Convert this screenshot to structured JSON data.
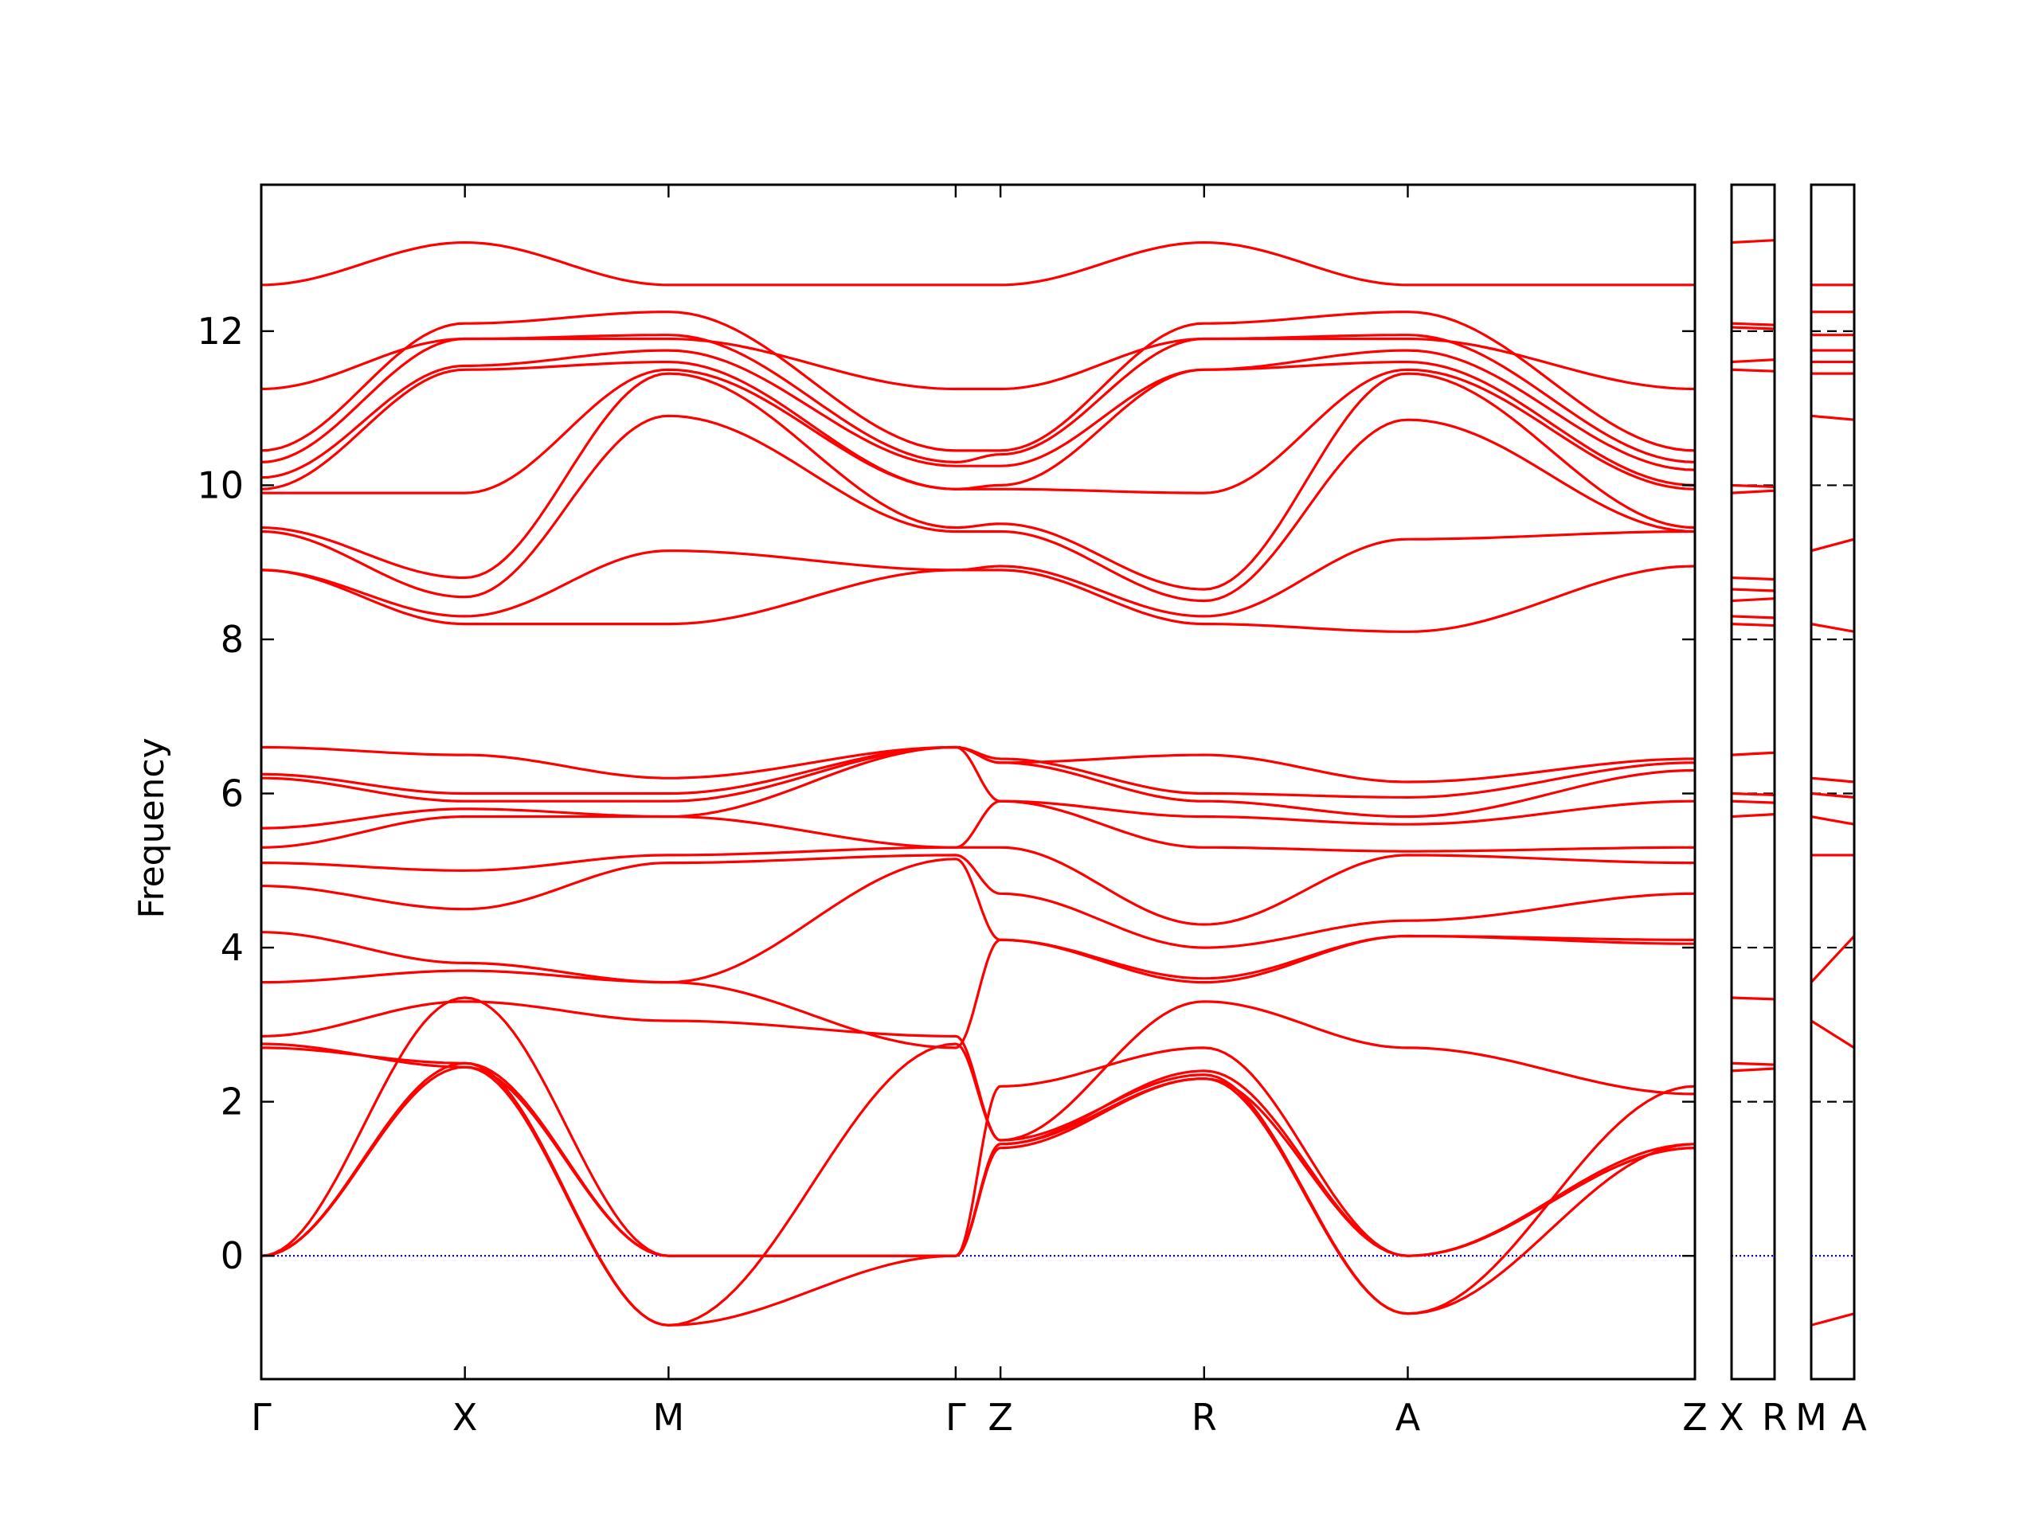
{
  "chart_data": {
    "type": "line",
    "title": "",
    "xlabel": "",
    "ylabel": "Frequency",
    "ylim": [
      -1.6,
      13.9
    ],
    "yticks": [
      0,
      2,
      4,
      6,
      8,
      10,
      12
    ],
    "grid": false,
    "legend": "none",
    "colors": {
      "bands": "#ff0000",
      "zero_line": "#0000ff",
      "frame": "#000000"
    },
    "panels": [
      {
        "id": "main",
        "path_labels": [
          "Γ",
          "X",
          "M",
          "Γ",
          "Z",
          "R",
          "A",
          "Z"
        ],
        "segment_lengths": [
          1,
          1,
          1.41,
          0.22,
          1,
          1,
          1.41
        ],
        "band_values": [
          [
            0.0,
            2.45,
            0.0,
            0.0,
            1.45,
            2.3,
            0.0,
            1.4
          ],
          [
            0.0,
            2.5,
            0.0,
            0.0,
            1.45,
            2.4,
            0.0,
            1.45
          ],
          [
            0.0,
            3.35,
            0.0,
            0.0,
            2.2,
            2.7,
            0.0,
            1.4
          ],
          [
            2.7,
            2.5,
            -0.9,
            0.0,
            1.4,
            2.3,
            -0.75,
            1.45
          ],
          [
            2.75,
            2.45,
            -0.9,
            2.75,
            1.5,
            2.35,
            -0.75,
            2.2
          ],
          [
            2.85,
            3.3,
            3.05,
            2.85,
            1.5,
            3.3,
            2.7,
            2.1
          ],
          [
            3.55,
            3.7,
            3.55,
            2.7,
            4.1,
            3.6,
            4.15,
            4.05
          ],
          [
            4.2,
            3.8,
            3.55,
            5.15,
            4.1,
            3.55,
            4.15,
            4.1
          ],
          [
            4.8,
            4.5,
            5.1,
            5.2,
            4.7,
            4.0,
            4.35,
            4.7
          ],
          [
            5.1,
            5.0,
            5.2,
            5.3,
            5.3,
            4.3,
            5.2,
            5.1
          ],
          [
            5.3,
            5.7,
            5.7,
            5.3,
            5.9,
            5.3,
            5.25,
            5.3
          ],
          [
            5.55,
            5.8,
            5.7,
            6.6,
            5.9,
            5.7,
            5.6,
            5.9
          ],
          [
            6.2,
            5.9,
            5.9,
            6.6,
            6.4,
            5.9,
            5.7,
            6.3
          ],
          [
            6.25,
            6.0,
            6.0,
            6.6,
            6.45,
            6.0,
            5.95,
            6.4
          ],
          [
            6.6,
            6.5,
            6.2,
            6.6,
            6.4,
            6.5,
            6.15,
            6.45
          ],
          [
            8.9,
            8.2,
            8.2,
            8.9,
            8.9,
            8.2,
            8.1,
            8.95
          ],
          [
            8.9,
            8.3,
            9.15,
            8.9,
            8.95,
            8.3,
            9.3,
            9.4
          ],
          [
            9.4,
            8.55,
            10.9,
            9.4,
            9.4,
            8.5,
            10.85,
            9.4
          ],
          [
            9.45,
            8.8,
            11.45,
            9.45,
            9.5,
            8.65,
            11.45,
            9.45
          ],
          [
            9.9,
            9.9,
            11.5,
            9.95,
            9.95,
            9.9,
            11.5,
            9.95
          ],
          [
            9.95,
            11.5,
            11.6,
            9.95,
            10.0,
            11.5,
            11.6,
            10.0
          ],
          [
            10.1,
            11.55,
            11.75,
            10.25,
            10.25,
            11.5,
            11.75,
            10.2
          ],
          [
            10.3,
            11.9,
            11.95,
            10.3,
            10.4,
            11.9,
            11.95,
            10.3
          ],
          [
            10.45,
            12.1,
            12.25,
            10.45,
            10.45,
            12.1,
            12.25,
            10.45
          ],
          [
            11.25,
            11.9,
            11.9,
            11.25,
            11.25,
            11.9,
            11.9,
            11.25
          ],
          [
            12.6,
            13.15,
            12.6,
            12.6,
            12.6,
            13.15,
            12.6,
            12.6
          ]
        ]
      },
      {
        "id": "xr",
        "path_labels": [
          "X",
          "R"
        ]
      },
      {
        "id": "ma",
        "path_labels": [
          "M",
          "A"
        ]
      }
    ],
    "dashed_guide_values": [
      0,
      2,
      4,
      6,
      8,
      10,
      12
    ]
  }
}
